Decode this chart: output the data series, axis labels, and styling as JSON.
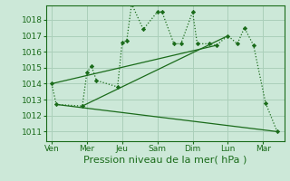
{
  "bg_color": "#cce8d8",
  "grid_color": "#aacfba",
  "line_color": "#1a6b1a",
  "xlabel": "Pression niveau de la mer( hPa )",
  "xlabel_fontsize": 8,
  "yticks": [
    1011,
    1012,
    1013,
    1014,
    1015,
    1016,
    1017,
    1018
  ],
  "ylim": [
    1010.4,
    1018.9
  ],
  "xtick_labels": [
    "Ven",
    "Mer",
    "Jeu",
    "Sam",
    "Dim",
    "Lun",
    "Mar"
  ],
  "xtick_positions": [
    0,
    1,
    2,
    3,
    4,
    5,
    6
  ],
  "xlim": [
    -0.15,
    6.6
  ],
  "series1_x": [
    0.0,
    0.13,
    0.87,
    1.0,
    1.13,
    1.27,
    1.87,
    2.0,
    2.13,
    2.27,
    2.6,
    3.0,
    3.13,
    3.47,
    3.67,
    4.0,
    4.13,
    4.47,
    4.67,
    5.0,
    5.27,
    5.47,
    5.73,
    6.07,
    6.4
  ],
  "series1_y": [
    1014.0,
    1012.7,
    1012.6,
    1014.7,
    1015.1,
    1014.2,
    1013.8,
    1016.6,
    1016.7,
    1019.0,
    1017.4,
    1018.5,
    1018.5,
    1016.5,
    1016.5,
    1018.5,
    1016.5,
    1016.5,
    1016.4,
    1017.0,
    1016.5,
    1017.5,
    1016.4,
    1012.8,
    1011.0
  ],
  "trend_lines": [
    {
      "x": [
        0.0,
        4.67
      ],
      "y": [
        1014.0,
        1016.4
      ]
    },
    {
      "x": [
        0.13,
        6.4
      ],
      "y": [
        1012.7,
        1011.0
      ]
    },
    {
      "x": [
        0.87,
        5.0
      ],
      "y": [
        1012.6,
        1017.0
      ]
    }
  ]
}
